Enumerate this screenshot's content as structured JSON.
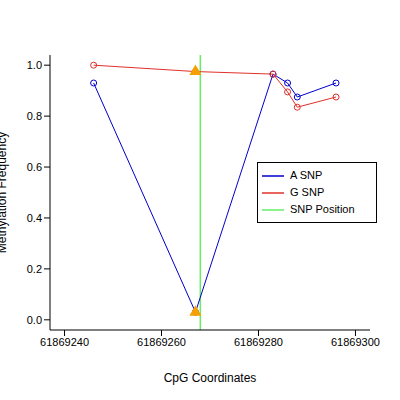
{
  "chart_data": {
    "type": "line",
    "x_label": "CpG Coordinates",
    "y_label": "Methylation Frequency",
    "xlim": [
      61869237,
      61869303
    ],
    "xticks": [
      61869240,
      61869260,
      61869280,
      61869300
    ],
    "ylim": [
      -0.04,
      1.04
    ],
    "yticks": [
      {
        "value": 0,
        "label": "0.0"
      },
      0.2,
      0.4,
      0.6,
      0.8,
      {
        "value": 1,
        "label": "1.0"
      }
    ],
    "legend": "right",
    "grid": false,
    "series": [
      {
        "name": "A SNP",
        "color": "#0000cd",
        "marker": "circle",
        "x": [
          61869246,
          61869267,
          61869283,
          61869286,
          61869288,
          61869296
        ],
        "values": [
          0.93,
          0.03,
          0.965,
          0.93,
          0.875,
          0.93
        ]
      },
      {
        "name": "G SNP",
        "color": "#e0302a",
        "marker": "circle",
        "x": [
          61869246,
          61869267,
          61869283,
          61869286,
          61869288,
          61869296
        ],
        "values": [
          1.0,
          0.975,
          0.965,
          0.895,
          0.835,
          0.875
        ]
      }
    ],
    "snp_position": {
      "name": "SNP Position",
      "x": 61869268,
      "color": "#66ee66"
    },
    "highlight_points": {
      "color": "#f5a000",
      "marker": "triangle",
      "x": [
        61869267,
        61869267
      ],
      "values": [
        0.03,
        0.975
      ]
    }
  }
}
